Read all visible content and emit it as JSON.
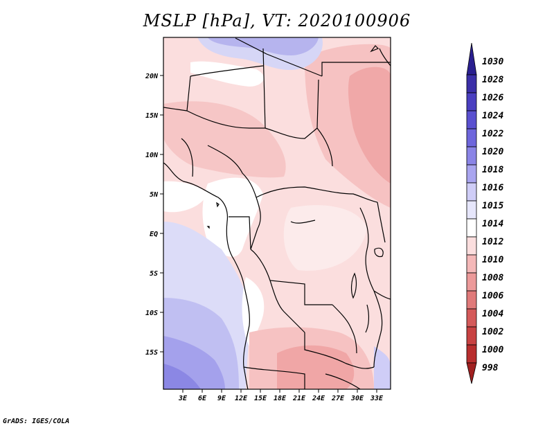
{
  "title": "MSLP [hPa], VT: 2020100906",
  "footer": "GrADS: IGES/COLA",
  "lat_ticks": [
    "20N",
    "15N",
    "10N",
    "5N",
    "EQ",
    "5S",
    "10S",
    "15S"
  ],
  "lon_ticks": [
    "3E",
    "6E",
    "9E",
    "12E",
    "15E",
    "18E",
    "21E",
    "24E",
    "27E",
    "30E",
    "33E"
  ],
  "colorbar": {
    "labels": [
      "1030",
      "1028",
      "1026",
      "1024",
      "1022",
      "1020",
      "1018",
      "1016",
      "1015",
      "1014",
      "1012",
      "1010",
      "1008",
      "1006",
      "1004",
      "1002",
      "1000",
      "998"
    ],
    "colors": [
      "#2a1f8f",
      "#3b2fa8",
      "#4a3fc0",
      "#5a50d0",
      "#6e66dc",
      "#8a84e6",
      "#a9a5ef",
      "#cfcdf7",
      "#e6e6fb",
      "#ffffff",
      "#fbdede",
      "#f4b8b8",
      "#ec9a9a",
      "#e07a7a",
      "#d45a5a",
      "#c84242",
      "#b82e2e",
      "#a02020"
    ]
  },
  "chart_data": {
    "type": "heatmap",
    "title": "MSLP [hPa], VT: 2020100906",
    "variable": "Mean sea level pressure",
    "units": "hPa",
    "valid_time": "2020100906",
    "lon_range": [
      0,
      35
    ],
    "lat_range": [
      -19,
      24.5
    ],
    "color_levels": [
      998,
      1000,
      1002,
      1004,
      1006,
      1008,
      1010,
      1012,
      1014,
      1015,
      1016,
      1018,
      1020,
      1022,
      1024,
      1026,
      1028,
      1030
    ]
  }
}
